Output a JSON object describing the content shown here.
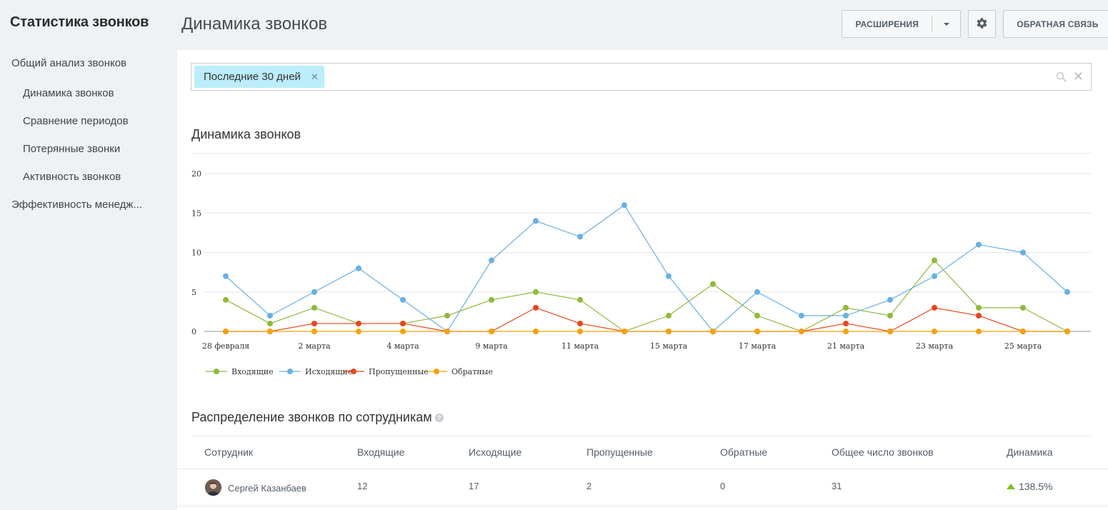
{
  "app_title": "Статистика звонков",
  "sidebar": {
    "items": [
      {
        "label": "Общий анализ звонков",
        "level": 1
      },
      {
        "label": "Динамика звонков",
        "level": 2
      },
      {
        "label": "Сравнение периодов",
        "level": 2
      },
      {
        "label": "Потерянные звонки",
        "level": 2
      },
      {
        "label": "Активность звонков",
        "level": 2
      },
      {
        "label": "Эффективность менедж...",
        "level": 1
      }
    ]
  },
  "header": {
    "title": "Динамика звонков",
    "extensions_label": "РАСШИРЕНИЯ",
    "feedback_label": "ОБРАТНАЯ СВЯЗЬ",
    "icons": {
      "caret": "chevron-down-icon",
      "settings": "gear-icon"
    }
  },
  "filter": {
    "chip_label": "Последние 30 дней",
    "icons": {
      "chip_remove": "close-icon",
      "search": "search-icon",
      "clear": "close-icon"
    }
  },
  "chart_section_title": "Динамика звонков",
  "chart_data": {
    "type": "line",
    "ylim": [
      0,
      20
    ],
    "yticks": [
      0,
      5,
      10,
      15,
      20
    ],
    "x": [
      "28 февраля",
      "1 марта",
      "2 марта",
      "3 марта",
      "4 марта",
      "5 марта",
      "9 марта",
      "10 марта",
      "11 марта",
      "12 марта",
      "15 марта",
      "16 марта",
      "17 марта",
      "18 марта",
      "21 марта",
      "22 марта",
      "23 марта",
      "24 марта",
      "25 марта",
      "26 марта"
    ],
    "xtick_labels": [
      "28 февраля",
      "",
      "2 марта",
      "",
      "4 марта",
      "",
      "9 марта",
      "",
      "11 марта",
      "",
      "15 марта",
      "",
      "17 марта",
      "",
      "21 марта",
      "",
      "23 марта",
      "",
      "25 марта",
      ""
    ],
    "series": [
      {
        "name": "Входящие",
        "color": "#8fba3b",
        "values": [
          4,
          1,
          3,
          1,
          1,
          2,
          4,
          5,
          4,
          0,
          2,
          6,
          2,
          0,
          3,
          2,
          9,
          3,
          3,
          0
        ]
      },
      {
        "name": "Исходящие",
        "color": "#68b0e3",
        "values": [
          7,
          2,
          5,
          8,
          4,
          0,
          9,
          14,
          12,
          16,
          7,
          0,
          5,
          2,
          2,
          4,
          7,
          11,
          10,
          5
        ]
      },
      {
        "name": "Пропущенные",
        "color": "#e9461c",
        "values": [
          0,
          0,
          1,
          1,
          1,
          0,
          0,
          3,
          1,
          0,
          0,
          0,
          0,
          0,
          1,
          0,
          3,
          2,
          0,
          0
        ]
      },
      {
        "name": "Обратные",
        "color": "#f6a10d",
        "values": [
          0,
          0,
          0,
          0,
          0,
          0,
          0,
          0,
          0,
          0,
          0,
          0,
          0,
          0,
          0,
          0,
          0,
          0,
          0,
          0
        ]
      }
    ],
    "legend_position": "bottom-left",
    "grid": true
  },
  "table": {
    "title": "Распределение звонков по сотрудникам",
    "columns": [
      "Сотрудник",
      "Входящие",
      "Исходящие",
      "Пропущенные",
      "Обратные",
      "Общее число звонков",
      "Динамика"
    ],
    "rows": [
      {
        "employee": "Сергей Казанбаев",
        "incoming": "12",
        "outgoing": "17",
        "missed": "2",
        "callbacks": "0",
        "total": "31",
        "dynamics": "138.5%"
      }
    ]
  }
}
